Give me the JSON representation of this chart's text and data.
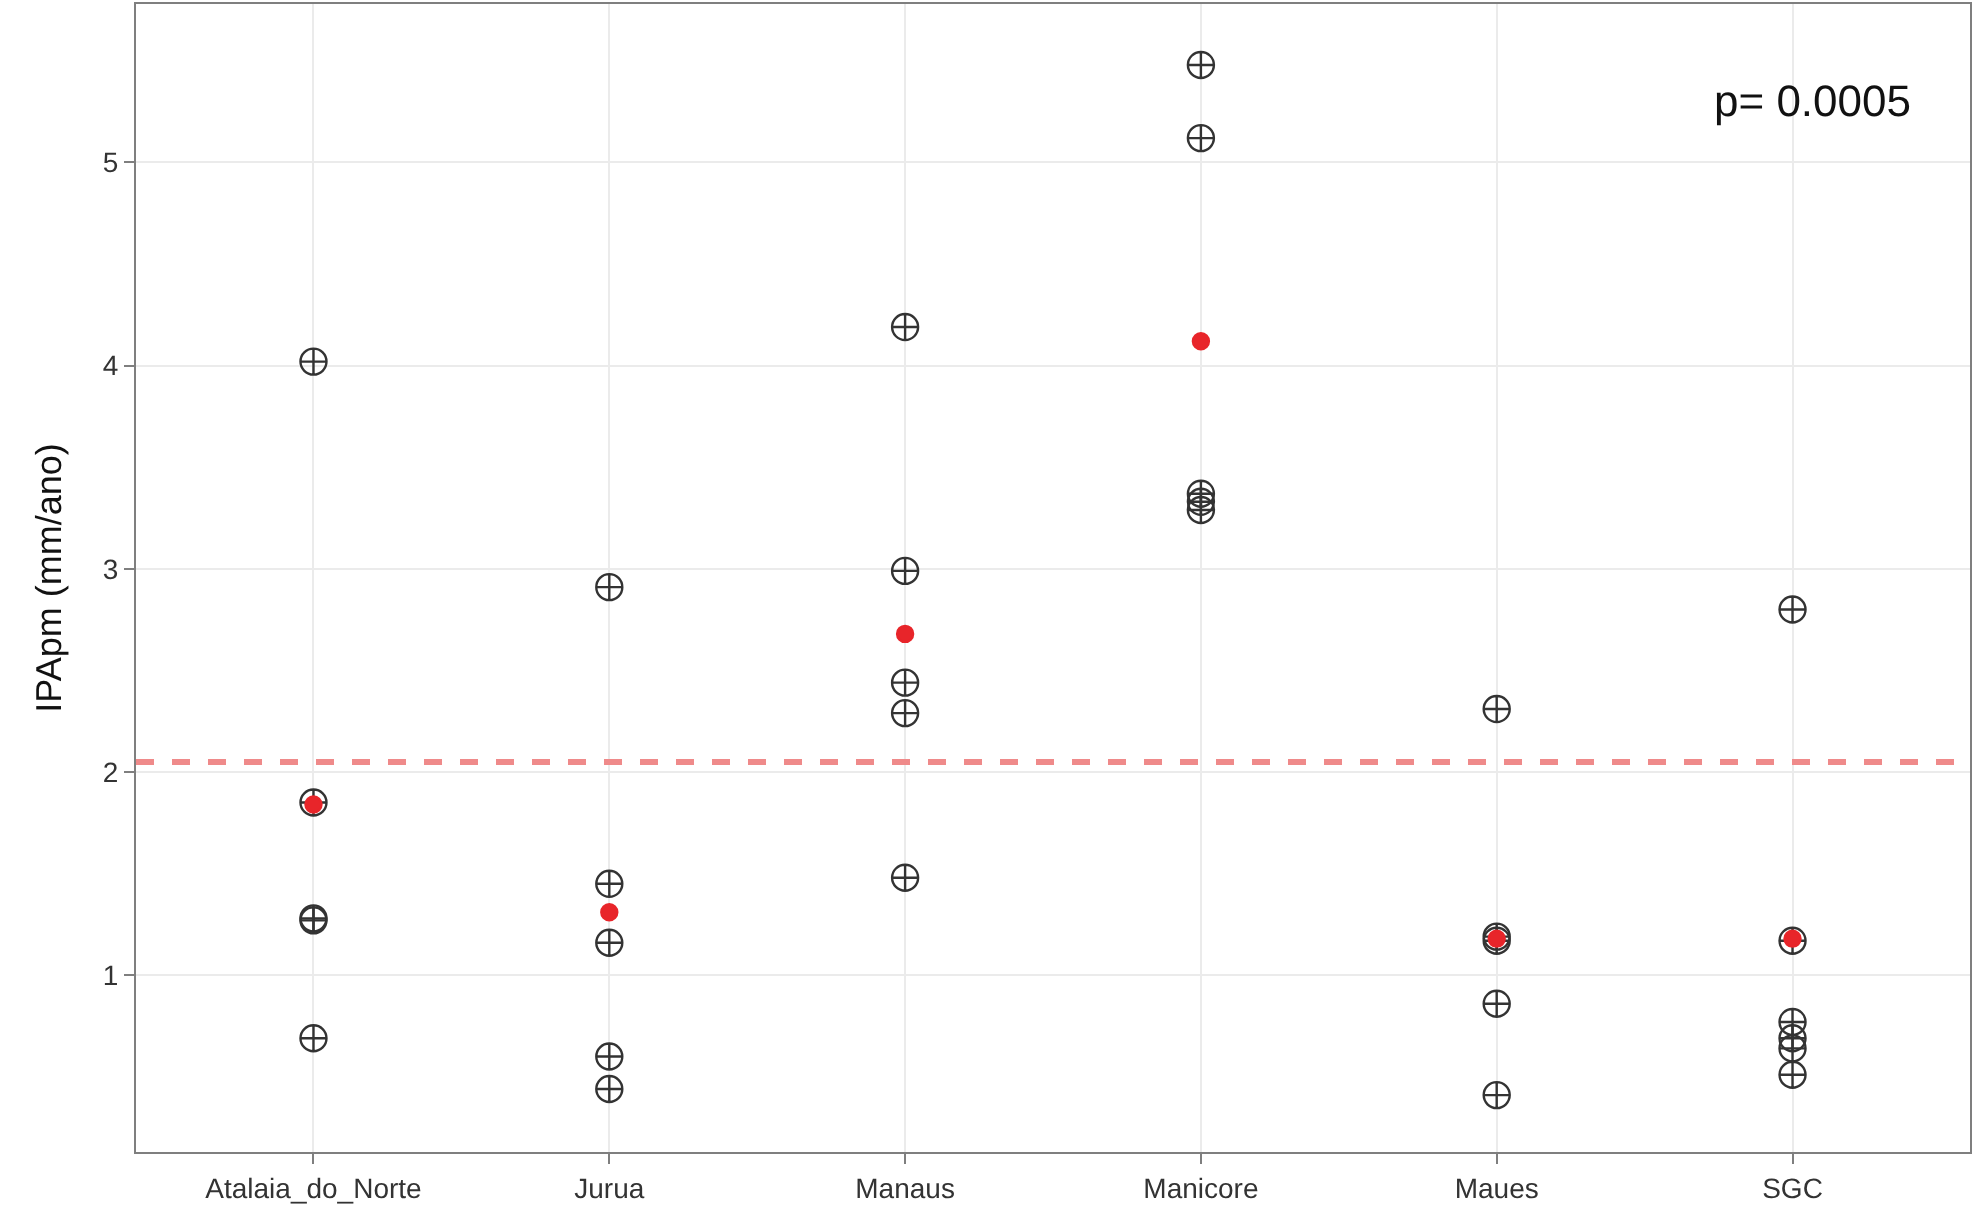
{
  "chart_data": {
    "type": "scatter",
    "ylabel": "IPApm (mm/ano)",
    "categories": [
      "Atalaia_do_Norte",
      "Jurua",
      "Manaus",
      "Manicore",
      "Maues",
      "SGC"
    ],
    "series": [
      {
        "color": "#333333",
        "marker": "cross",
        "x": [
          "Atalaia_do_Norte",
          "Atalaia_do_Norte",
          "Atalaia_do_Norte",
          "Atalaia_do_Norte",
          "Atalaia_do_Norte",
          "Jurua",
          "Jurua",
          "Jurua",
          "Jurua",
          "Jurua",
          "Manaus",
          "Manaus",
          "Manaus",
          "Manaus",
          "Manaus",
          "Manicore",
          "Manicore",
          "Manicore",
          "Manicore",
          "Manicore",
          "Maues",
          "Maues",
          "Maues",
          "Maues",
          "Maues",
          "SGC",
          "SGC",
          "SGC",
          "SGC",
          "SGC",
          "SGC"
        ],
        "values": [
          4.02,
          1.85,
          1.28,
          1.27,
          0.69,
          2.91,
          1.45,
          1.16,
          0.6,
          0.44,
          4.19,
          2.99,
          2.44,
          2.29,
          1.48,
          5.48,
          5.12,
          3.37,
          3.33,
          3.29,
          2.31,
          1.19,
          1.17,
          0.86,
          0.41,
          2.8,
          1.17,
          0.77,
          0.69,
          0.64,
          0.51
        ]
      },
      {
        "color": "#e8252a",
        "marker": "circle",
        "x": [
          "Atalaia_do_Norte",
          "Jurua",
          "Manaus",
          "Manicore",
          "Maues",
          "SGC"
        ],
        "values": [
          1.84,
          1.31,
          2.68,
          4.12,
          1.18,
          1.18
        ]
      }
    ],
    "ylim": [
      0.13,
      5.78
    ],
    "yticks": [
      1,
      2,
      3,
      4,
      5
    ],
    "ref_lines": [
      {
        "axis": "y",
        "value": 2.05,
        "color": "#ef8a8a",
        "line_style": "dashed"
      }
    ],
    "annotations": [
      "p= 0.0005"
    ],
    "grid": true
  }
}
